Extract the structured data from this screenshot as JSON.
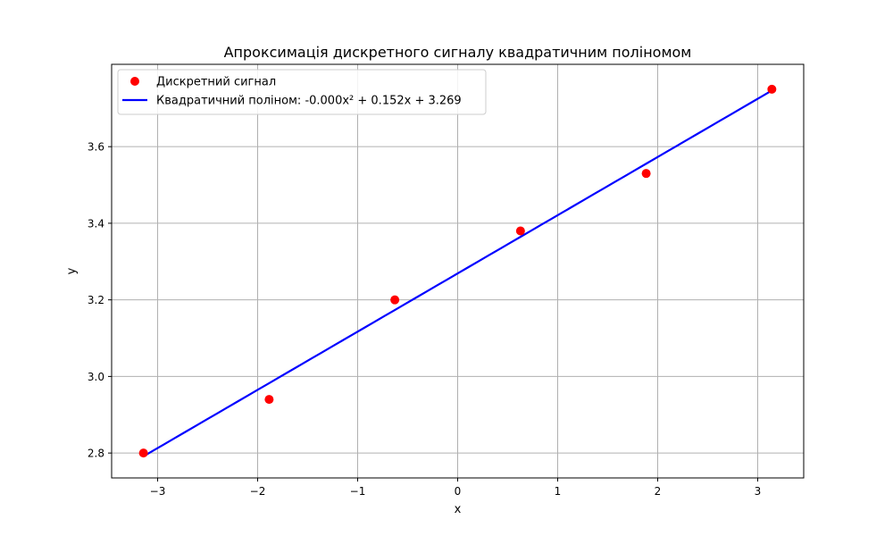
{
  "chart_data": {
    "type": "scatter",
    "title": "Апроксимація дискретного сигналу квадратичним поліномом",
    "xlabel": "x",
    "ylabel": "y",
    "xlim": [
      -3.46,
      3.46
    ],
    "ylim": [
      2.735,
      3.815
    ],
    "xticks": [
      -3,
      -2,
      -1,
      0,
      1,
      2,
      3
    ],
    "xtick_labels": [
      "−3",
      "−2",
      "−1",
      "0",
      "1",
      "2",
      "3"
    ],
    "yticks": [
      2.8,
      3.0,
      3.2,
      3.4,
      3.6
    ],
    "ytick_labels": [
      "2.8",
      "3.0",
      "3.2",
      "3.4",
      "3.6"
    ],
    "grid": true,
    "legend_location": "upper-left",
    "series": [
      {
        "name": "Дискретний сигнал",
        "kind": "scatter",
        "color": "#ff0000",
        "x": [
          -3.1416,
          -1.885,
          -0.6283,
          0.6283,
          1.885,
          3.1416
        ],
        "y": [
          2.8,
          2.94,
          3.2,
          3.38,
          3.53,
          3.75
        ]
      },
      {
        "name": "Квадратичний поліном: -0.000x² + 0.152x + 3.269",
        "kind": "line",
        "color": "#0000ff",
        "coefficients": [
          -0.0,
          0.152,
          3.269
        ],
        "x_range": [
          -3.1416,
          3.1416
        ]
      }
    ]
  }
}
